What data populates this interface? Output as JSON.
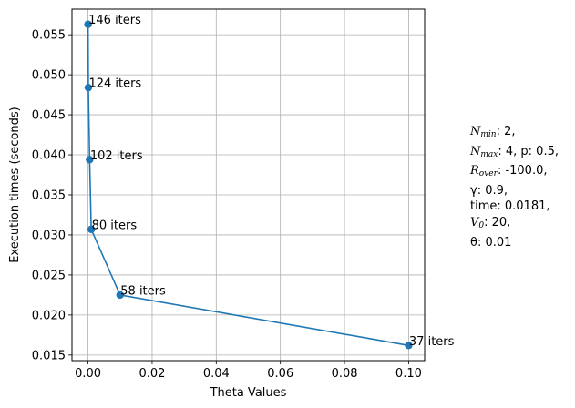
{
  "chart_data": {
    "type": "line",
    "xlabel": "Theta Values",
    "ylabel": "Execution times (seconds)",
    "xlim": [
      -0.005,
      0.105
    ],
    "ylim": [
      0.0143,
      0.0582
    ],
    "grid": true,
    "xticks": [
      0.0,
      0.02,
      0.04,
      0.06,
      0.08,
      0.1
    ],
    "xtick_labels": [
      "0.00",
      "0.02",
      "0.04",
      "0.06",
      "0.08",
      "0.10"
    ],
    "yticks": [
      0.015,
      0.02,
      0.025,
      0.03,
      0.035,
      0.04,
      0.045,
      0.05,
      0.055
    ],
    "ytick_labels": [
      "0.015",
      "0.020",
      "0.025",
      "0.030",
      "0.035",
      "0.040",
      "0.045",
      "0.050",
      "0.055"
    ],
    "color": "#1f77b4",
    "x": [
      1e-05,
      0.0001,
      0.0005,
      0.001,
      0.01,
      0.1
    ],
    "y": [
      0.0563,
      0.0484,
      0.0394,
      0.0307,
      0.0225,
      0.0162
    ],
    "point_labels": [
      "146 iters",
      "124 iters",
      "102 iters",
      "80 iters",
      "58 iters",
      "37 iters"
    ]
  },
  "side_note": {
    "n_min_symbol": "N",
    "n_min_sub": "min",
    "n_min_value": ": 2,",
    "n_max_symbol": "N",
    "n_max_sub": "max",
    "n_max_value": ": 4, p: 0.5,",
    "r_over_symbol": "R",
    "r_over_sub": "over",
    "r_over_value": ": -100.0,",
    "gamma_line": "γ: 0.9,",
    "time_line": "time: 0.0181,",
    "v0_symbol": "V",
    "v0_sub": "0",
    "v0_value": ": 20,",
    "theta_line": "θ: 0.01"
  }
}
